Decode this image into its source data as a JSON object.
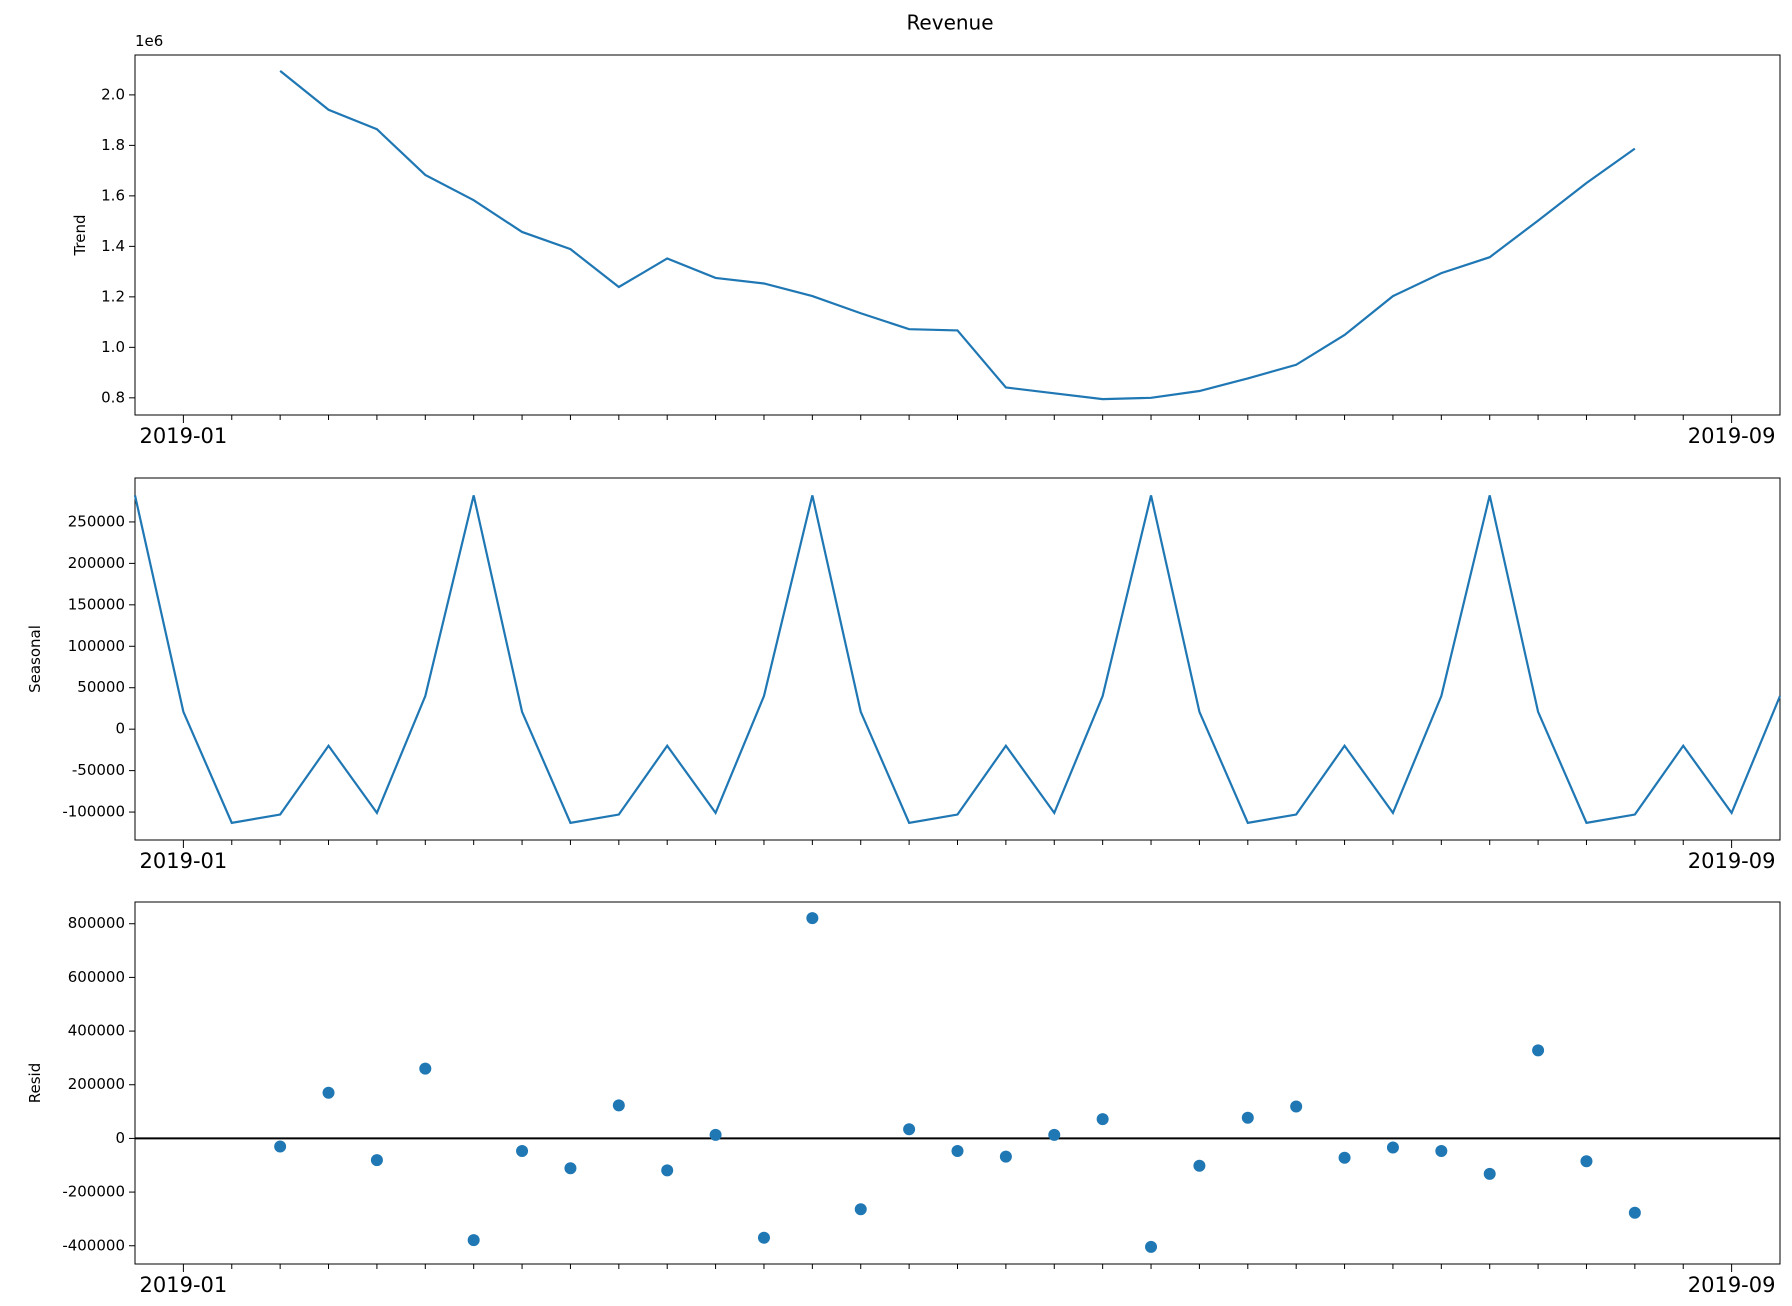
{
  "chart_data": [
    {
      "type": "line",
      "title": "Revenue",
      "offset_text": "1e6",
      "ylabel": "Trend",
      "categories": [
        null,
        "2019-01",
        null,
        null,
        null,
        null,
        null,
        null,
        null,
        null,
        null,
        null,
        null,
        null,
        null,
        null,
        null,
        null,
        null,
        null,
        null,
        null,
        null,
        null,
        null,
        null,
        null,
        null,
        null,
        null,
        null,
        null,
        null,
        "2019-09",
        null
      ],
      "series": [
        {
          "name": "Trend",
          "color": "#1f77b4",
          "values": [
            null,
            null,
            null,
            2.095,
            1.941,
            1.864,
            1.683,
            1.583,
            1.457,
            1.389,
            1.239,
            1.352,
            1.275,
            1.253,
            1.203,
            1.135,
            1.072,
            1.067,
            0.841,
            0.818,
            0.795,
            0.8,
            0.827,
            0.877,
            0.931,
            1.049,
            1.203,
            1.294,
            1.357,
            1.502,
            1.651,
            1.787,
            null,
            null,
            null
          ]
        }
      ],
      "ylim": [
        0.732,
        2.158
      ],
      "yticks": [
        0.8,
        {
          "value": 1.0,
          "label": "1.0"
        },
        1.2,
        1.4,
        1.6,
        1.8,
        {
          "value": 2.0,
          "label": "2.0"
        }
      ]
    },
    {
      "type": "line",
      "ylabel": "Seasonal",
      "categories": [
        null,
        "2019-01",
        null,
        null,
        null,
        null,
        null,
        null,
        null,
        null,
        null,
        null,
        null,
        null,
        null,
        null,
        null,
        null,
        null,
        null,
        null,
        null,
        null,
        null,
        null,
        null,
        null,
        null,
        null,
        null,
        null,
        null,
        null,
        "2019-09",
        null
      ],
      "series": [
        {
          "name": "Seasonal",
          "color": "#1f77b4",
          "values": [
            282000,
            21000,
            -113000,
            -103000,
            -20000,
            -101000,
            40000,
            282000,
            21000,
            -113000,
            -103000,
            -20000,
            -101000,
            40000,
            282000,
            21000,
            -113000,
            -103000,
            -20000,
            -101000,
            40000,
            282000,
            21000,
            -113000,
            -103000,
            -20000,
            -101000,
            40000,
            282000,
            21000,
            -113000,
            -103000,
            -20000,
            -101000,
            40000
          ]
        }
      ],
      "ylim": [
        -133700,
        303000
      ],
      "yticks": [
        -100000,
        -50000,
        0,
        50000,
        100000,
        150000,
        200000,
        250000
      ]
    },
    {
      "type": "scatter",
      "ylabel": "Resid",
      "hline": 0,
      "categories": [
        null,
        "2019-01",
        null,
        null,
        null,
        null,
        null,
        null,
        null,
        null,
        null,
        null,
        null,
        null,
        null,
        null,
        null,
        null,
        null,
        null,
        null,
        null,
        null,
        null,
        null,
        null,
        null,
        null,
        null,
        null,
        null,
        null,
        null,
        "2019-09",
        null
      ],
      "series": [
        {
          "name": "Resid",
          "color": "#1f77b4",
          "values": [
            null,
            null,
            null,
            -30000,
            170000,
            -81000,
            260000,
            -379000,
            -47000,
            -111000,
            123000,
            -119000,
            13000,
            -370000,
            821000,
            -264000,
            34000,
            -47000,
            -68000,
            13000,
            72000,
            -404000,
            -102000,
            77000,
            119000,
            -72000,
            -34000,
            -47000,
            -132000,
            328000,
            -85000,
            -277000,
            null,
            null,
            null
          ]
        }
      ],
      "ylim": [
        -468000,
        881000
      ],
      "yticks": [
        -400000,
        -200000,
        0,
        200000,
        400000,
        600000,
        800000
      ]
    }
  ]
}
